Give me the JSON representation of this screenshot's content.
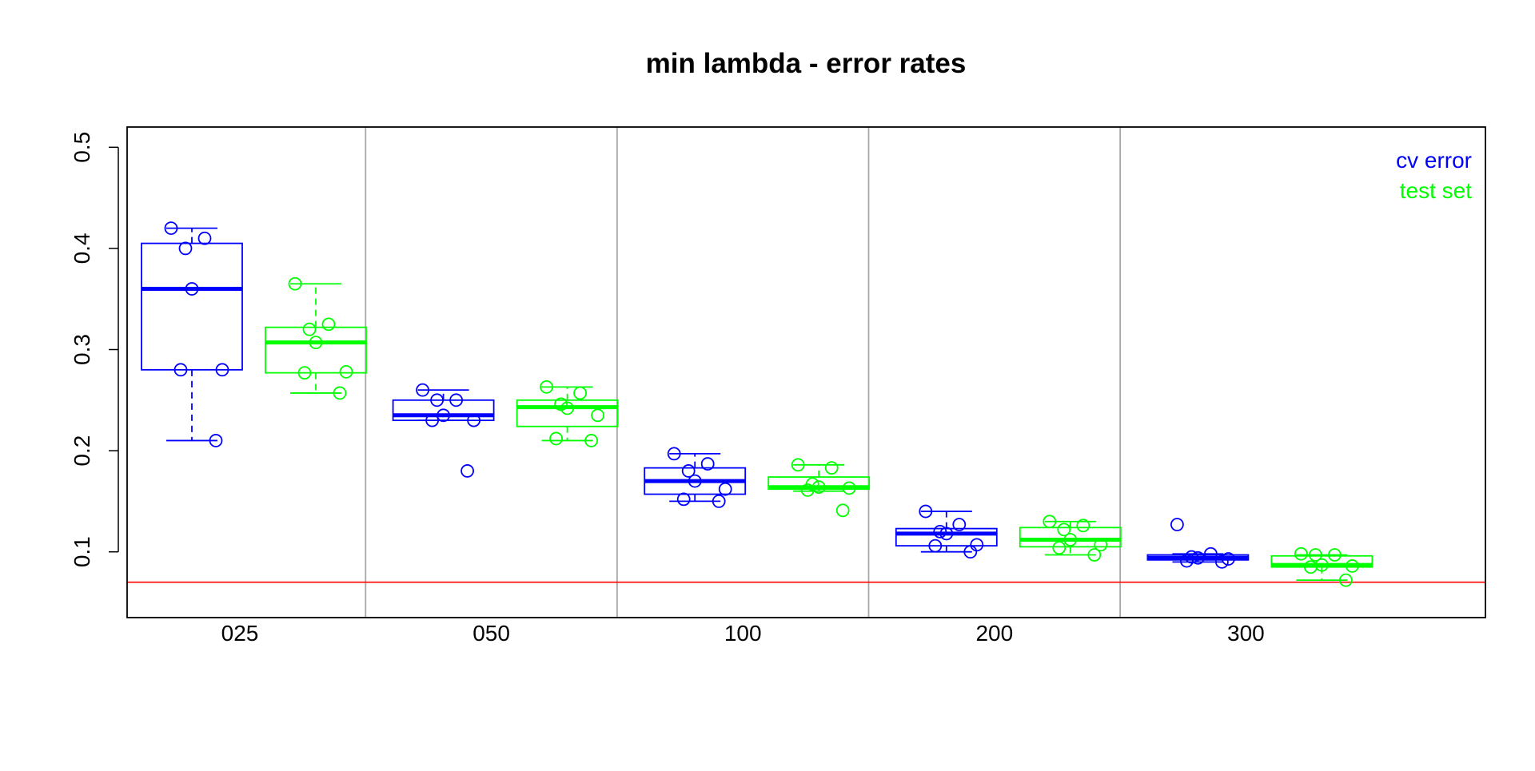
{
  "chart_data": {
    "type": "box",
    "title": "min lambda - error rates",
    "xlabel": "",
    "ylabel": "",
    "categories": [
      "025",
      "050",
      "100",
      "200",
      "300"
    ],
    "ylim": [
      0.035,
      0.52
    ],
    "yticks": [
      0.1,
      0.2,
      0.3,
      0.4,
      0.5
    ],
    "ytick_labels": [
      "0.1",
      "0.2",
      "0.3",
      "0.4",
      "0.5"
    ],
    "reference_line": {
      "y": 0.07,
      "color": "#ff0000"
    },
    "group_separators": true,
    "legend": {
      "position": "top-right",
      "entries": [
        {
          "label": "cv error",
          "color": "#0000ff"
        },
        {
          "label": "test set",
          "color": "#00ff00"
        }
      ]
    },
    "series": [
      {
        "name": "cv error",
        "color": "#0000ff",
        "boxes": [
          {
            "min": 0.21,
            "q1": 0.28,
            "median": 0.36,
            "q3": 0.405,
            "max": 0.42
          },
          {
            "min": 0.23,
            "q1": 0.23,
            "median": 0.235,
            "q3": 0.25,
            "max": 0.26
          },
          {
            "min": 0.15,
            "q1": 0.157,
            "median": 0.17,
            "q3": 0.183,
            "max": 0.197
          },
          {
            "min": 0.1,
            "q1": 0.106,
            "median": 0.118,
            "q3": 0.123,
            "max": 0.14
          },
          {
            "min": 0.09,
            "q1": 0.092,
            "median": 0.094,
            "q3": 0.097,
            "max": 0.098
          }
        ],
        "points": [
          [
            0.42,
            0.41,
            0.4,
            0.36,
            0.28,
            0.28,
            0.21
          ],
          [
            0.26,
            0.25,
            0.25,
            0.235,
            0.23,
            0.23,
            0.18
          ],
          [
            0.197,
            0.187,
            0.18,
            0.17,
            0.162,
            0.152,
            0.15
          ],
          [
            0.14,
            0.127,
            0.12,
            0.118,
            0.107,
            0.106,
            0.1
          ],
          [
            0.127,
            0.098,
            0.095,
            0.094,
            0.093,
            0.091,
            0.09
          ]
        ]
      },
      {
        "name": "test set",
        "color": "#00ff00",
        "boxes": [
          {
            "min": 0.257,
            "q1": 0.277,
            "median": 0.307,
            "q3": 0.322,
            "max": 0.365
          },
          {
            "min": 0.21,
            "q1": 0.224,
            "median": 0.243,
            "q3": 0.25,
            "max": 0.263
          },
          {
            "min": 0.16,
            "q1": 0.162,
            "median": 0.164,
            "q3": 0.174,
            "max": 0.186
          },
          {
            "min": 0.097,
            "q1": 0.105,
            "median": 0.112,
            "q3": 0.124,
            "max": 0.13
          },
          {
            "min": 0.072,
            "q1": 0.085,
            "median": 0.087,
            "q3": 0.096,
            "max": 0.097
          }
        ],
        "points": [
          [
            0.365,
            0.325,
            0.32,
            0.307,
            0.278,
            0.277,
            0.257
          ],
          [
            0.263,
            0.257,
            0.246,
            0.242,
            0.235,
            0.212,
            0.21
          ],
          [
            0.186,
            0.183,
            0.167,
            0.164,
            0.163,
            0.161,
            0.141
          ],
          [
            0.13,
            0.126,
            0.122,
            0.112,
            0.107,
            0.104,
            0.097
          ],
          [
            0.098,
            0.097,
            0.097,
            0.087,
            0.086,
            0.085,
            0.072
          ]
        ]
      }
    ]
  }
}
